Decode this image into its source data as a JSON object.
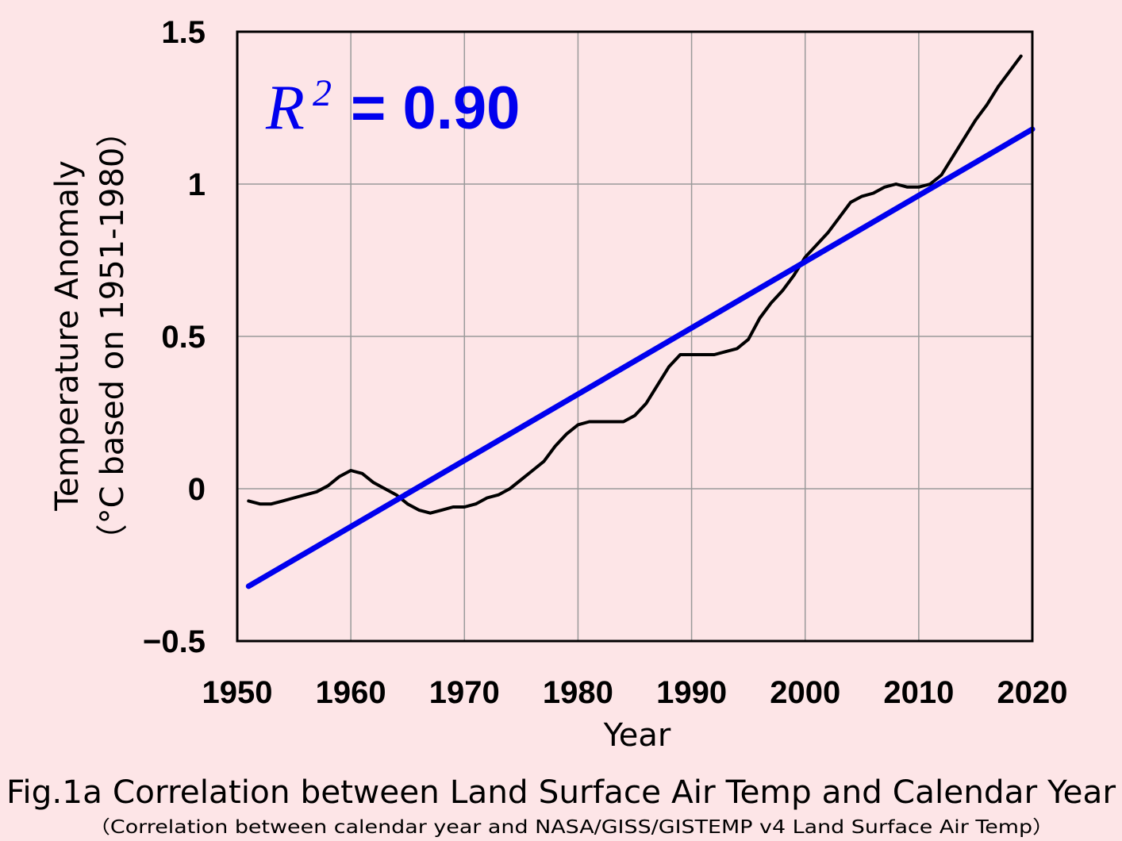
{
  "chart_data": {
    "type": "line",
    "xlabel": "Year",
    "ylabel_line1": "Temperature Anomaly",
    "ylabel_line2": "（°C  based on 1951-1980）",
    "xlim": [
      1950,
      2020
    ],
    "ylim": [
      -0.5,
      1.5
    ],
    "xticks": [
      1950,
      1960,
      1970,
      1980,
      1990,
      2000,
      2010,
      2020
    ],
    "yticks": [
      -0.5,
      0,
      0.5,
      1,
      1.5
    ],
    "ytick_labels": [
      "−0.5",
      "0",
      "0.5",
      "1",
      "1.5"
    ],
    "grid": true,
    "annotation": {
      "symbol": "R",
      "superscript": "2",
      "value": "= 0.90"
    },
    "series": [
      {
        "color": "#000000",
        "x": [
          1951,
          1952,
          1953,
          1954,
          1955,
          1956,
          1957,
          1958,
          1959,
          1960,
          1961,
          1962,
          1963,
          1964,
          1965,
          1966,
          1967,
          1968,
          1969,
          1970,
          1971,
          1972,
          1973,
          1974,
          1975,
          1976,
          1977,
          1978,
          1979,
          1980,
          1981,
          1982,
          1983,
          1984,
          1985,
          1986,
          1987,
          1988,
          1989,
          1990,
          1991,
          1992,
          1993,
          1994,
          1995,
          1996,
          1997,
          1998,
          1999,
          2000,
          2001,
          2002,
          2003,
          2004,
          2005,
          2006,
          2007,
          2008,
          2009,
          2010,
          2011,
          2012,
          2013,
          2014,
          2015,
          2016,
          2017,
          2018,
          2019
        ],
        "y": [
          -0.04,
          -0.05,
          -0.05,
          -0.04,
          -0.03,
          -0.02,
          -0.01,
          0.01,
          0.04,
          0.06,
          0.05,
          0.02,
          0.0,
          -0.02,
          -0.05,
          -0.07,
          -0.08,
          -0.07,
          -0.06,
          -0.06,
          -0.05,
          -0.03,
          -0.02,
          0.0,
          0.03,
          0.06,
          0.09,
          0.14,
          0.18,
          0.21,
          0.22,
          0.22,
          0.22,
          0.22,
          0.24,
          0.28,
          0.34,
          0.4,
          0.44,
          0.44,
          0.44,
          0.44,
          0.45,
          0.46,
          0.49,
          0.56,
          0.61,
          0.65,
          0.7,
          0.76,
          0.8,
          0.84,
          0.89,
          0.94,
          0.96,
          0.97,
          0.99,
          1.0,
          0.99,
          0.99,
          1.0,
          1.03,
          1.09,
          1.15,
          1.21,
          1.26,
          1.32,
          1.37,
          1.42
        ]
      },
      {
        "color": "#0000ee",
        "x": [
          1951,
          2020
        ],
        "y": [
          -0.32,
          1.18
        ]
      }
    ]
  },
  "caption": {
    "title": "Fig.1a Correlation between Land Surface Air Temp and Calendar Year",
    "subtitle": "（Correlation between calendar year and NASA/GISS/GISTEMP v4 Land Surface Air Temp）"
  }
}
